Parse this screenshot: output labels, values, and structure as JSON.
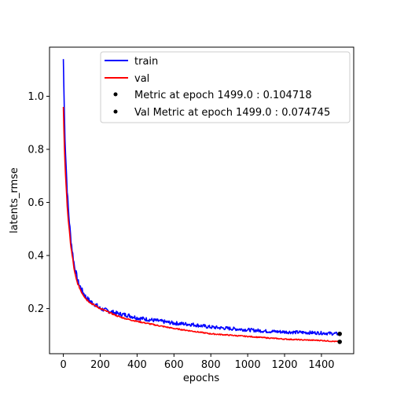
{
  "chart_data": {
    "type": "line",
    "xlabel": "epochs",
    "ylabel": "latents_rmse",
    "xlim": [
      -75,
      1575
    ],
    "ylim": [
      0.03,
      1.185
    ],
    "xticks": [
      0,
      200,
      400,
      600,
      800,
      1000,
      1200,
      1400
    ],
    "yticks": [
      0.2,
      0.4,
      0.6,
      0.8,
      1.0
    ],
    "xtick_labels": [
      "0",
      "200",
      "400",
      "600",
      "800",
      "1000",
      "1200",
      "1400"
    ],
    "ytick_labels": [
      "0.2",
      "0.4",
      "0.6",
      "0.8",
      "1.0"
    ],
    "grid": false,
    "legend_position": "top-right",
    "series": [
      {
        "name": "train",
        "color": "#0000ff",
        "x": [
          0,
          5,
          10,
          15,
          20,
          25,
          30,
          40,
          50,
          60,
          70,
          80,
          90,
          100,
          125,
          150,
          175,
          200,
          250,
          300,
          350,
          400,
          450,
          500,
          600,
          700,
          800,
          900,
          1000,
          1100,
          1200,
          1300,
          1400,
          1499
        ],
        "y": [
          1.14,
          0.95,
          0.82,
          0.74,
          0.66,
          0.6,
          0.55,
          0.47,
          0.41,
          0.36,
          0.33,
          0.3,
          0.285,
          0.27,
          0.24,
          0.225,
          0.215,
          0.2,
          0.19,
          0.18,
          0.175,
          0.165,
          0.16,
          0.155,
          0.145,
          0.14,
          0.13,
          0.125,
          0.12,
          0.115,
          0.112,
          0.11,
          0.108,
          0.104718
        ]
      },
      {
        "name": "val",
        "color": "#ff0000",
        "x": [
          0,
          5,
          10,
          15,
          20,
          25,
          30,
          40,
          50,
          60,
          70,
          80,
          90,
          100,
          125,
          150,
          175,
          200,
          250,
          300,
          350,
          400,
          450,
          500,
          600,
          700,
          800,
          900,
          1000,
          1100,
          1200,
          1300,
          1400,
          1499
        ],
        "y": [
          0.96,
          0.82,
          0.73,
          0.66,
          0.6,
          0.55,
          0.51,
          0.44,
          0.39,
          0.34,
          0.31,
          0.29,
          0.275,
          0.26,
          0.235,
          0.22,
          0.21,
          0.2,
          0.185,
          0.17,
          0.16,
          0.152,
          0.145,
          0.138,
          0.125,
          0.115,
          0.105,
          0.1,
          0.095,
          0.09,
          0.085,
          0.082,
          0.08,
          0.074745
        ]
      }
    ],
    "markers": [
      {
        "name": "Metric at epoch 1499.0 : 0.104718",
        "x": 1499,
        "y": 0.104718,
        "color": "#000000"
      },
      {
        "name": "Val Metric at epoch 1499.0 : 0.074745",
        "x": 1499,
        "y": 0.074745,
        "color": "#000000"
      }
    ]
  }
}
